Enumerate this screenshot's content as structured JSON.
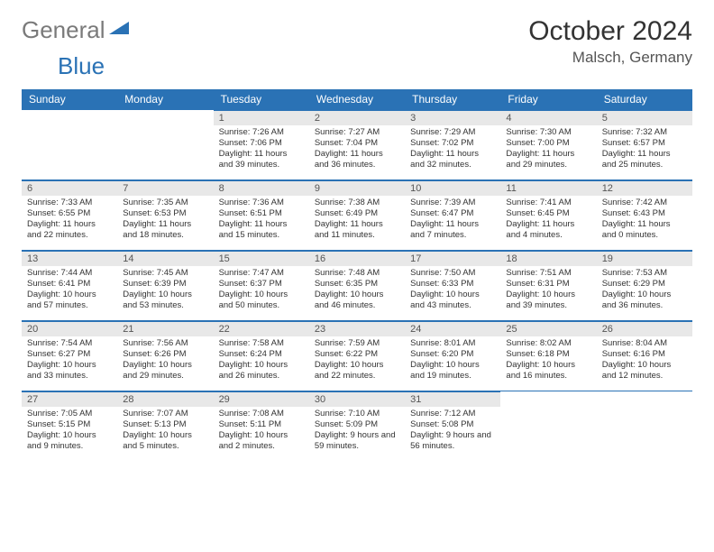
{
  "logo": {
    "general": "General",
    "blue": "Blue"
  },
  "title": "October 2024",
  "location": "Malsch, Germany",
  "colors": {
    "header_bg": "#2a72b5",
    "header_text": "#ffffff",
    "daynum_bg": "#e8e8e8",
    "border": "#2a72b5",
    "logo_gray": "#7a7a7a",
    "logo_blue": "#2a72b5"
  },
  "day_headers": [
    "Sunday",
    "Monday",
    "Tuesday",
    "Wednesday",
    "Thursday",
    "Friday",
    "Saturday"
  ],
  "weeks": [
    [
      {
        "n": "",
        "sunrise": "",
        "sunset": "",
        "daylight": ""
      },
      {
        "n": "",
        "sunrise": "",
        "sunset": "",
        "daylight": ""
      },
      {
        "n": "1",
        "sunrise": "Sunrise: 7:26 AM",
        "sunset": "Sunset: 7:06 PM",
        "daylight": "Daylight: 11 hours and 39 minutes."
      },
      {
        "n": "2",
        "sunrise": "Sunrise: 7:27 AM",
        "sunset": "Sunset: 7:04 PM",
        "daylight": "Daylight: 11 hours and 36 minutes."
      },
      {
        "n": "3",
        "sunrise": "Sunrise: 7:29 AM",
        "sunset": "Sunset: 7:02 PM",
        "daylight": "Daylight: 11 hours and 32 minutes."
      },
      {
        "n": "4",
        "sunrise": "Sunrise: 7:30 AM",
        "sunset": "Sunset: 7:00 PM",
        "daylight": "Daylight: 11 hours and 29 minutes."
      },
      {
        "n": "5",
        "sunrise": "Sunrise: 7:32 AM",
        "sunset": "Sunset: 6:57 PM",
        "daylight": "Daylight: 11 hours and 25 minutes."
      }
    ],
    [
      {
        "n": "6",
        "sunrise": "Sunrise: 7:33 AM",
        "sunset": "Sunset: 6:55 PM",
        "daylight": "Daylight: 11 hours and 22 minutes."
      },
      {
        "n": "7",
        "sunrise": "Sunrise: 7:35 AM",
        "sunset": "Sunset: 6:53 PM",
        "daylight": "Daylight: 11 hours and 18 minutes."
      },
      {
        "n": "8",
        "sunrise": "Sunrise: 7:36 AM",
        "sunset": "Sunset: 6:51 PM",
        "daylight": "Daylight: 11 hours and 15 minutes."
      },
      {
        "n": "9",
        "sunrise": "Sunrise: 7:38 AM",
        "sunset": "Sunset: 6:49 PM",
        "daylight": "Daylight: 11 hours and 11 minutes."
      },
      {
        "n": "10",
        "sunrise": "Sunrise: 7:39 AM",
        "sunset": "Sunset: 6:47 PM",
        "daylight": "Daylight: 11 hours and 7 minutes."
      },
      {
        "n": "11",
        "sunrise": "Sunrise: 7:41 AM",
        "sunset": "Sunset: 6:45 PM",
        "daylight": "Daylight: 11 hours and 4 minutes."
      },
      {
        "n": "12",
        "sunrise": "Sunrise: 7:42 AM",
        "sunset": "Sunset: 6:43 PM",
        "daylight": "Daylight: 11 hours and 0 minutes."
      }
    ],
    [
      {
        "n": "13",
        "sunrise": "Sunrise: 7:44 AM",
        "sunset": "Sunset: 6:41 PM",
        "daylight": "Daylight: 10 hours and 57 minutes."
      },
      {
        "n": "14",
        "sunrise": "Sunrise: 7:45 AM",
        "sunset": "Sunset: 6:39 PM",
        "daylight": "Daylight: 10 hours and 53 minutes."
      },
      {
        "n": "15",
        "sunrise": "Sunrise: 7:47 AM",
        "sunset": "Sunset: 6:37 PM",
        "daylight": "Daylight: 10 hours and 50 minutes."
      },
      {
        "n": "16",
        "sunrise": "Sunrise: 7:48 AM",
        "sunset": "Sunset: 6:35 PM",
        "daylight": "Daylight: 10 hours and 46 minutes."
      },
      {
        "n": "17",
        "sunrise": "Sunrise: 7:50 AM",
        "sunset": "Sunset: 6:33 PM",
        "daylight": "Daylight: 10 hours and 43 minutes."
      },
      {
        "n": "18",
        "sunrise": "Sunrise: 7:51 AM",
        "sunset": "Sunset: 6:31 PM",
        "daylight": "Daylight: 10 hours and 39 minutes."
      },
      {
        "n": "19",
        "sunrise": "Sunrise: 7:53 AM",
        "sunset": "Sunset: 6:29 PM",
        "daylight": "Daylight: 10 hours and 36 minutes."
      }
    ],
    [
      {
        "n": "20",
        "sunrise": "Sunrise: 7:54 AM",
        "sunset": "Sunset: 6:27 PM",
        "daylight": "Daylight: 10 hours and 33 minutes."
      },
      {
        "n": "21",
        "sunrise": "Sunrise: 7:56 AM",
        "sunset": "Sunset: 6:26 PM",
        "daylight": "Daylight: 10 hours and 29 minutes."
      },
      {
        "n": "22",
        "sunrise": "Sunrise: 7:58 AM",
        "sunset": "Sunset: 6:24 PM",
        "daylight": "Daylight: 10 hours and 26 minutes."
      },
      {
        "n": "23",
        "sunrise": "Sunrise: 7:59 AM",
        "sunset": "Sunset: 6:22 PM",
        "daylight": "Daylight: 10 hours and 22 minutes."
      },
      {
        "n": "24",
        "sunrise": "Sunrise: 8:01 AM",
        "sunset": "Sunset: 6:20 PM",
        "daylight": "Daylight: 10 hours and 19 minutes."
      },
      {
        "n": "25",
        "sunrise": "Sunrise: 8:02 AM",
        "sunset": "Sunset: 6:18 PM",
        "daylight": "Daylight: 10 hours and 16 minutes."
      },
      {
        "n": "26",
        "sunrise": "Sunrise: 8:04 AM",
        "sunset": "Sunset: 6:16 PM",
        "daylight": "Daylight: 10 hours and 12 minutes."
      }
    ],
    [
      {
        "n": "27",
        "sunrise": "Sunrise: 7:05 AM",
        "sunset": "Sunset: 5:15 PM",
        "daylight": "Daylight: 10 hours and 9 minutes."
      },
      {
        "n": "28",
        "sunrise": "Sunrise: 7:07 AM",
        "sunset": "Sunset: 5:13 PM",
        "daylight": "Daylight: 10 hours and 5 minutes."
      },
      {
        "n": "29",
        "sunrise": "Sunrise: 7:08 AM",
        "sunset": "Sunset: 5:11 PM",
        "daylight": "Daylight: 10 hours and 2 minutes."
      },
      {
        "n": "30",
        "sunrise": "Sunrise: 7:10 AM",
        "sunset": "Sunset: 5:09 PM",
        "daylight": "Daylight: 9 hours and 59 minutes."
      },
      {
        "n": "31",
        "sunrise": "Sunrise: 7:12 AM",
        "sunset": "Sunset: 5:08 PM",
        "daylight": "Daylight: 9 hours and 56 minutes."
      },
      {
        "n": "",
        "sunrise": "",
        "sunset": "",
        "daylight": ""
      },
      {
        "n": "",
        "sunrise": "",
        "sunset": "",
        "daylight": ""
      }
    ]
  ]
}
